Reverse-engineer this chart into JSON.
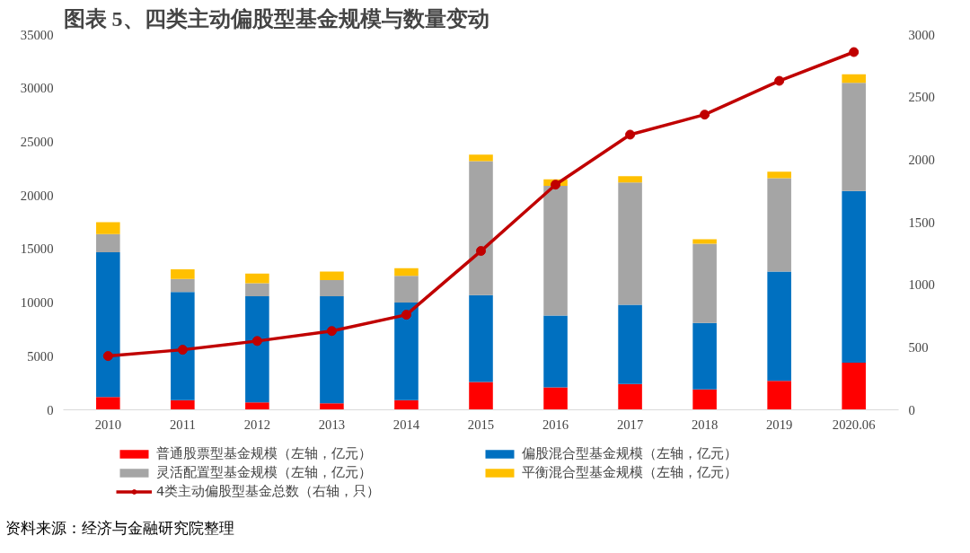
{
  "chart_data": {
    "type": "bar",
    "stacked": true,
    "title": "图表 5、四类主动偏股型基金规模与数量变动",
    "categories": [
      "2010",
      "2011",
      "2012",
      "2013",
      "2014",
      "2015",
      "2016",
      "2017",
      "2018",
      "2019",
      "2020.06"
    ],
    "series": [
      {
        "name": "普通股票型基金规模（左轴，亿元）",
        "color": "#ff0000",
        "values": [
          1200,
          900,
          700,
          600,
          900,
          2600,
          2100,
          2400,
          1900,
          2700,
          4400
        ]
      },
      {
        "name": "偏股混合型基金规模（左轴，亿元）",
        "color": "#0070c0",
        "values": [
          13500,
          10100,
          9900,
          10000,
          9100,
          8100,
          6700,
          7400,
          6200,
          10200,
          16000
        ]
      },
      {
        "name": "灵活配置型基金规模（左轴，亿元）",
        "color": "#a5a5a5",
        "values": [
          1700,
          1200,
          1200,
          1500,
          2500,
          12500,
          12100,
          11400,
          7400,
          8700,
          10100
        ]
      },
      {
        "name": "平衡混合型基金规模（左轴，亿元）",
        "color": "#ffc000",
        "values": [
          1100,
          900,
          900,
          800,
          700,
          600,
          600,
          600,
          400,
          600,
          800
        ]
      },
      {
        "name": "4类主动偏股型基金总数（右轴，只）",
        "color": "#c00000",
        "type": "line",
        "axis": "y2",
        "marker": "circle",
        "values": [
          430,
          480,
          550,
          630,
          760,
          1270,
          1800,
          2200,
          2360,
          2630,
          2860
        ]
      }
    ],
    "ylim": [
      0,
      35000
    ],
    "yticks": [
      0,
      5000,
      10000,
      15000,
      20000,
      25000,
      30000,
      35000
    ],
    "y2lim": [
      0,
      3000
    ],
    "y2ticks": [
      0,
      500,
      1000,
      1500,
      2000,
      2500,
      3000
    ],
    "grid": false,
    "legend": "bottom",
    "annotations": [
      "资料来源：经济与金融研究院整理"
    ]
  }
}
